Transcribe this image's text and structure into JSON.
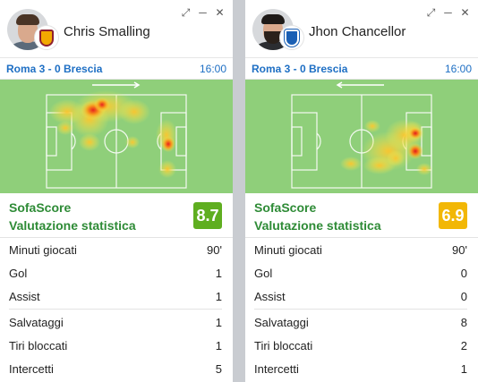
{
  "cards": [
    {
      "player_name": "Chris Smalling",
      "club_crest": "roma-crest",
      "match": "Roma 3 - 0 Brescia",
      "time": "16:00",
      "attack_direction": "right",
      "rating_label_1": "SofaScore",
      "rating_label_2": "Valutazione statistica",
      "rating": "8.7",
      "rating_color": "#5fae20",
      "stats_group_1": [
        {
          "label": "Minuti giocati",
          "value": "90'"
        },
        {
          "label": "Gol",
          "value": "1"
        },
        {
          "label": "Assist",
          "value": "1"
        }
      ],
      "stats_group_2": [
        {
          "label": "Salvataggi",
          "value": "1"
        },
        {
          "label": "Tiri bloccati",
          "value": "1"
        },
        {
          "label": "Intercetti",
          "value": "5"
        }
      ]
    },
    {
      "player_name": "Jhon Chancellor",
      "club_crest": "brescia-crest",
      "match": "Roma 3 - 0 Brescia",
      "time": "16:00",
      "attack_direction": "left",
      "rating_label_1": "SofaScore",
      "rating_label_2": "Valutazione statistica",
      "rating": "6.9",
      "rating_color": "#f2b705",
      "stats_group_1": [
        {
          "label": "Minuti giocati",
          "value": "90'"
        },
        {
          "label": "Gol",
          "value": "0"
        },
        {
          "label": "Assist",
          "value": "0"
        }
      ],
      "stats_group_2": [
        {
          "label": "Salvataggi",
          "value": "8"
        },
        {
          "label": "Tiri bloccati",
          "value": "2"
        },
        {
          "label": "Intercetti",
          "value": "1"
        }
      ]
    }
  ],
  "window_controls": [
    "expand-icon",
    "minimize-icon",
    "close-icon"
  ],
  "colors": {
    "pitch": "#8fcf7a",
    "link_blue": "#1e6fc4",
    "rating_green_text": "#2e8b36"
  }
}
